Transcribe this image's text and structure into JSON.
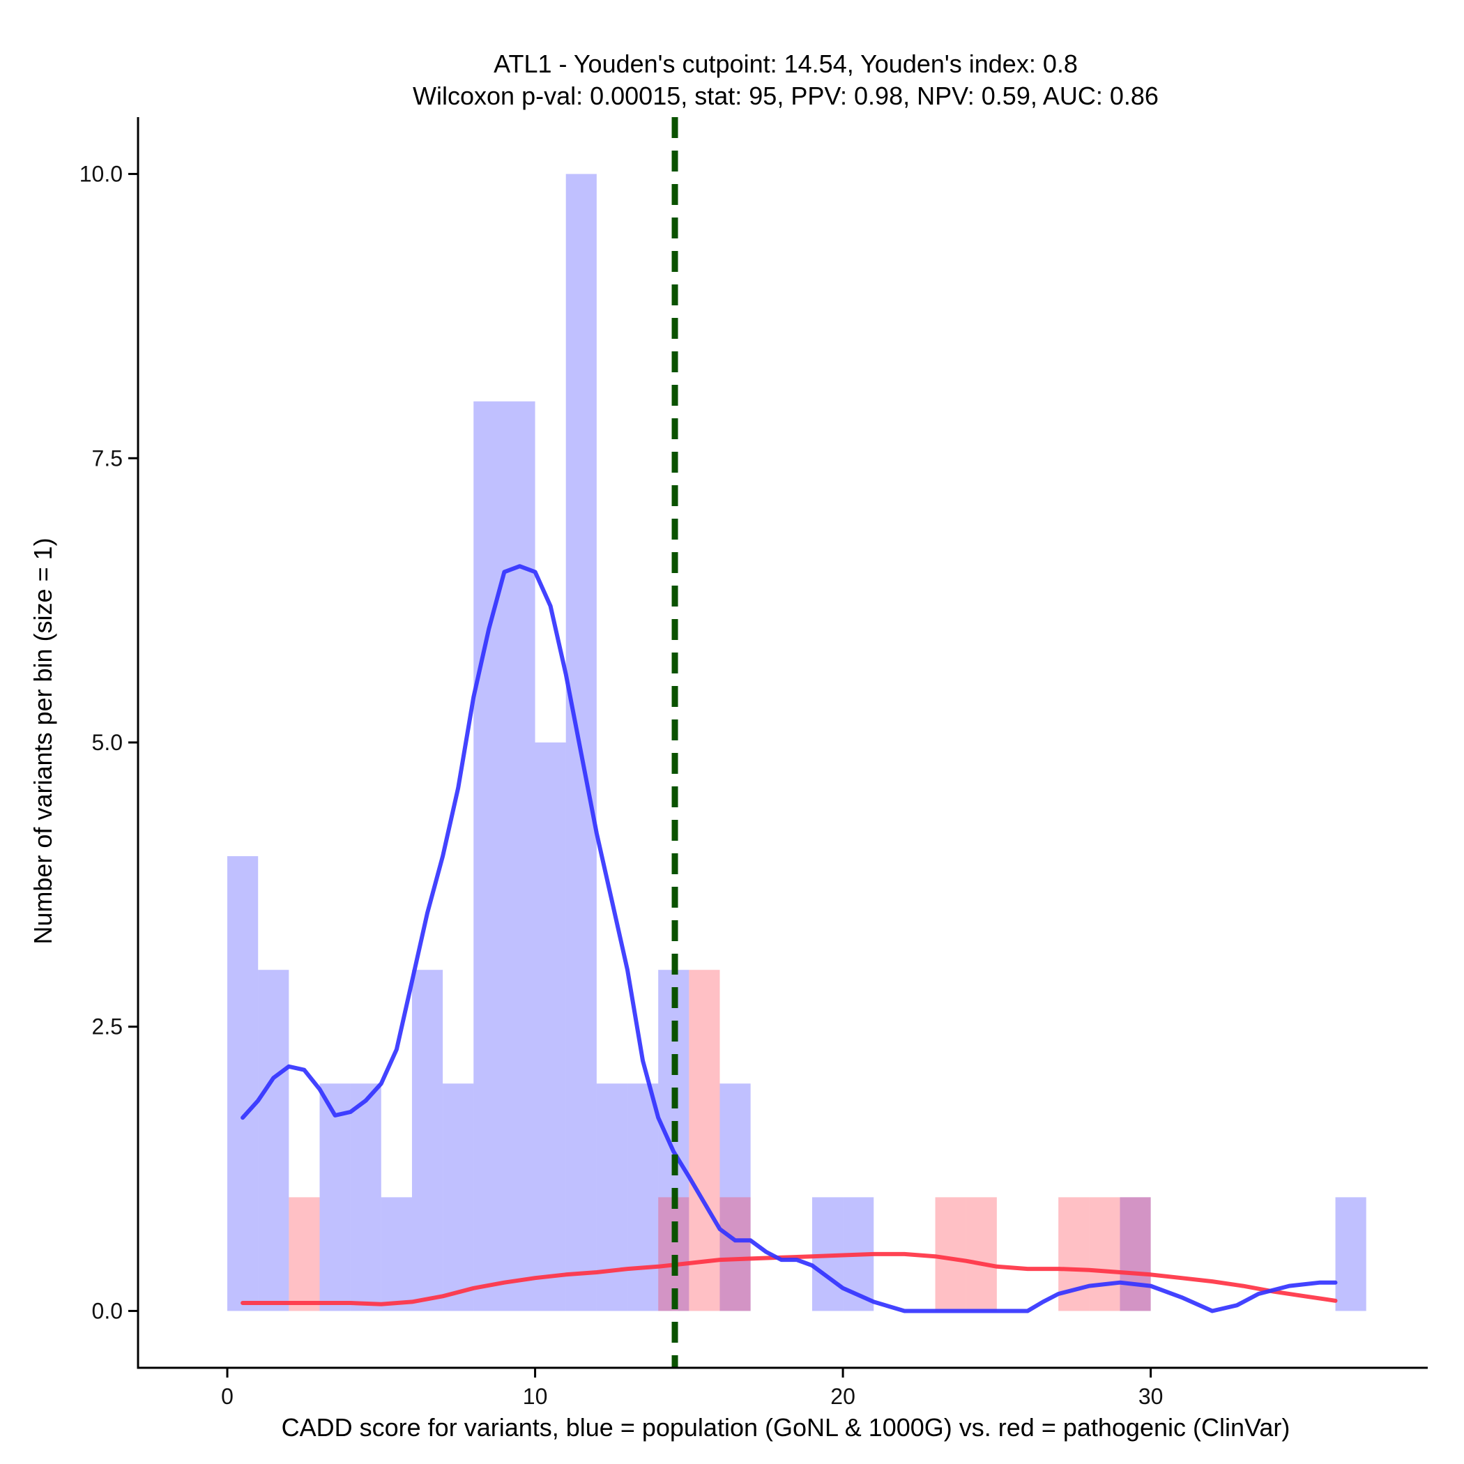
{
  "chart_data": {
    "type": "bar",
    "title_line1": "ATL1 - Youden's cutpoint: 14.54, Youden's index: 0.8",
    "title_line2": "Wilcoxon p-val: 0.00015, stat: 95, PPV: 0.98, NPV: 0.59, AUC: 0.86",
    "xlabel": "CADD score for variants, blue = population (GoNL & 1000G) vs. red = pathogenic (ClinVar)",
    "ylabel": "Number of variants per bin (size = 1)",
    "xlim": [
      -2.9,
      39.0
    ],
    "ylim": [
      -0.5,
      10.5
    ],
    "x_ticks": [
      0,
      10,
      20,
      30
    ],
    "x_tick_labels": [
      "0",
      "10",
      "20",
      "30"
    ],
    "y_ticks": [
      0,
      2.5,
      5,
      7.5,
      10
    ],
    "y_tick_labels": [
      "0.0",
      "2.5",
      "5.0",
      "7.5",
      "10.0"
    ],
    "bin_width": 1,
    "cutpoint": 14.54,
    "colors": {
      "population": "#3333ff",
      "pathogenic": "#ff3344",
      "cutpoint_line": "#0a5200",
      "axis": "#000000"
    },
    "series": [
      {
        "name": "population (GoNL & 1000G)",
        "bin_starts": [
          0,
          1,
          3,
          4,
          5,
          6,
          7,
          8,
          9,
          10,
          11,
          12,
          13,
          14,
          16,
          19,
          20,
          29,
          36
        ],
        "values": [
          4,
          3,
          2,
          2,
          1,
          3,
          2,
          8,
          8,
          5,
          10,
          2,
          2,
          3,
          2,
          1,
          1,
          1,
          1
        ]
      },
      {
        "name": "pathogenic (ClinVar)",
        "bin_starts": [
          2,
          14,
          15,
          16,
          23,
          24,
          27,
          28,
          29
        ],
        "values": [
          1,
          1,
          3,
          1,
          1,
          1,
          1,
          1,
          1
        ]
      }
    ],
    "density_population": {
      "x": [
        0.5,
        1.0,
        1.5,
        2.0,
        2.5,
        3.0,
        3.5,
        4.0,
        4.5,
        5.0,
        5.5,
        6.0,
        6.5,
        7.0,
        7.5,
        8.0,
        8.5,
        9.0,
        9.5,
        10.0,
        10.5,
        11.0,
        11.5,
        12.0,
        12.5,
        13.0,
        13.5,
        14.0,
        14.5,
        15.0,
        15.5,
        16.0,
        16.5,
        17.0,
        17.5,
        18.0,
        18.5,
        19.0,
        19.5,
        20.0,
        21.0,
        22.0,
        23.0,
        24.0,
        25.0,
        26.0,
        26.5,
        27.0,
        28.0,
        29.0,
        30.0,
        31.0,
        32.0,
        32.8,
        33.5,
        34.5,
        35.5,
        36.0
      ],
      "y": [
        1.7,
        1.85,
        2.05,
        2.15,
        2.12,
        1.95,
        1.72,
        1.75,
        1.85,
        2.0,
        2.3,
        2.9,
        3.5,
        4.0,
        4.6,
        5.4,
        6.0,
        6.5,
        6.55,
        6.5,
        6.2,
        5.6,
        4.9,
        4.2,
        3.6,
        3.0,
        2.2,
        1.7,
        1.4,
        1.18,
        0.95,
        0.72,
        0.62,
        0.62,
        0.52,
        0.45,
        0.45,
        0.4,
        0.3,
        0.2,
        0.08,
        0.0,
        0.0,
        0.0,
        0.0,
        0.0,
        0.08,
        0.15,
        0.22,
        0.25,
        0.22,
        0.12,
        0.0,
        0.05,
        0.15,
        0.22,
        0.25,
        0.25
      ]
    },
    "density_pathogenic": {
      "x": [
        0.5,
        2.0,
        4.0,
        5.0,
        6.0,
        7.0,
        8.0,
        9.0,
        10.0,
        11.0,
        12.0,
        13.0,
        14.0,
        15.0,
        16.0,
        17.0,
        18.0,
        19.0,
        20.0,
        21.0,
        22.0,
        23.0,
        24.0,
        25.0,
        26.0,
        27.0,
        28.0,
        29.0,
        30.0,
        31.0,
        32.0,
        33.0,
        34.0,
        35.0,
        36.0
      ],
      "y": [
        0.07,
        0.07,
        0.07,
        0.06,
        0.08,
        0.13,
        0.2,
        0.25,
        0.29,
        0.32,
        0.34,
        0.37,
        0.39,
        0.42,
        0.45,
        0.46,
        0.47,
        0.48,
        0.49,
        0.5,
        0.5,
        0.48,
        0.44,
        0.39,
        0.37,
        0.37,
        0.36,
        0.34,
        0.32,
        0.29,
        0.26,
        0.22,
        0.17,
        0.13,
        0.09
      ]
    }
  }
}
